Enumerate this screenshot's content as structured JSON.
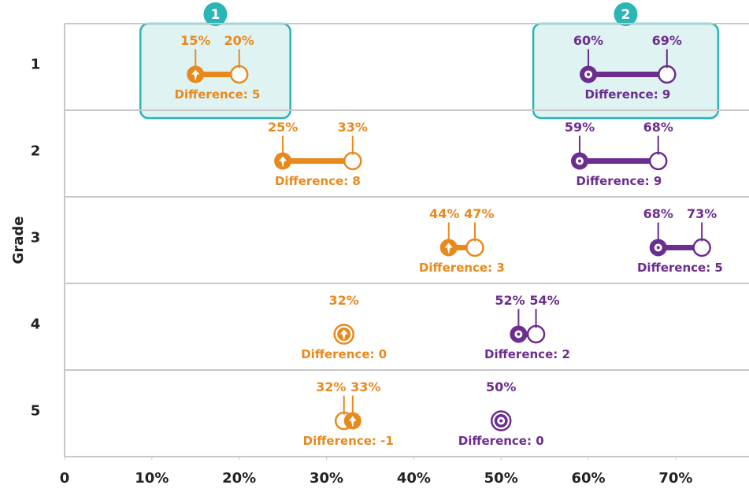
{
  "chart_data": {
    "type": "dumbbell",
    "y_label": "Grade",
    "categories": [
      "1",
      "2",
      "3",
      "4",
      "5"
    ],
    "xlim": [
      0,
      78.4
    ],
    "xticks": [
      0,
      {
        "value": 10,
        "label": "10%"
      },
      {
        "value": 20,
        "label": "20%"
      },
      {
        "value": 30,
        "label": "30%"
      },
      {
        "value": 40,
        "label": "40%"
      },
      {
        "value": 50,
        "label": "50%"
      },
      {
        "value": 60,
        "label": "60%"
      },
      {
        "value": 70,
        "label": "70%"
      }
    ],
    "annotations": [
      "1",
      "2"
    ],
    "series": [
      {
        "color": "#e8891d",
        "icon": "leaf",
        "start": [
          15,
          25,
          44,
          32,
          33
        ],
        "end": [
          20,
          33,
          47,
          32,
          32
        ],
        "start_labels": [
          "15%",
          "25%",
          "44%",
          "32%",
          "33%"
        ],
        "end_labels": [
          "20%",
          "33%",
          "47%",
          null,
          "32%"
        ],
        "difference_labels": [
          "Difference: 5",
          "Difference: 8",
          "Difference: 3",
          "Difference: 0",
          "Difference: -1"
        ]
      },
      {
        "color": "#6b2d8e",
        "icon": "flower",
        "start": [
          60,
          59,
          68,
          52,
          50
        ],
        "end": [
          69,
          68,
          73,
          54,
          50
        ],
        "start_labels": [
          "60%",
          "59%",
          "68%",
          "52%",
          "50%"
        ],
        "end_labels": [
          "69%",
          "68%",
          "73%",
          "54%",
          null
        ],
        "difference_labels": [
          "Difference: 9",
          "Difference: 9",
          "Difference: 5",
          "Difference: 2",
          "Difference: 0"
        ]
      }
    ]
  }
}
